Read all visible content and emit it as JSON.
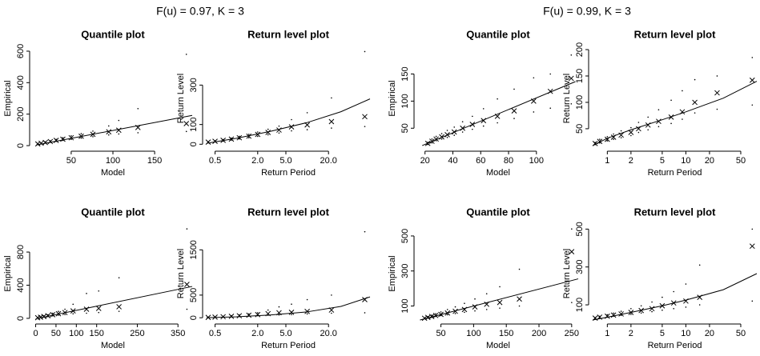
{
  "figure_titles": [
    "F(u) = 0.97, K = 3",
    "F(u) = 0.99, K = 3"
  ],
  "chart_data": [
    {
      "type": "scatter",
      "title": "Quantile plot",
      "xlabel": "Model",
      "ylabel": "Empirical",
      "xlog": false,
      "xlim": [
        5,
        195
      ],
      "ylim": [
        -10,
        610
      ],
      "xticks": [
        50,
        100,
        150
      ],
      "yticks": [
        0,
        200,
        400,
        600
      ],
      "series": [
        {
          "marker": "x",
          "x": [
            10,
            14,
            19,
            25,
            32,
            40,
            50,
            62,
            76,
            95,
            107,
            130,
            188
          ],
          "values": [
            11,
            15,
            20,
            26,
            33,
            41,
            50,
            60,
            72,
            88,
            98,
            115,
            140
          ]
        },
        {
          "marker": "dot",
          "x": [
            10,
            14,
            19,
            25,
            32,
            40,
            50,
            62,
            76,
            95,
            107,
            130,
            188
          ],
          "values": [
            13,
            18,
            24,
            31,
            40,
            50,
            62,
            76,
            92,
            125,
            160,
            235,
            580
          ]
        },
        {
          "marker": "dot",
          "x": [
            10,
            14,
            19,
            25,
            32,
            40,
            50,
            62,
            76,
            95,
            107,
            130,
            188
          ],
          "values": [
            9,
            12,
            16,
            21,
            27,
            33,
            40,
            48,
            57,
            68,
            74,
            82,
            90
          ]
        },
        {
          "marker": "line",
          "x": [
            8,
            195
          ],
          "values": [
            4,
            192
          ]
        }
      ]
    },
    {
      "type": "scatter",
      "title": "Return level plot",
      "xlabel": "Return Period",
      "ylabel": "Return Level",
      "xlog": true,
      "xlim": [
        0.38,
        77
      ],
      "ylim": [
        -15,
        480
      ],
      "xticks": [
        0.5,
        {
          "value": 2,
          "label": "2.0"
        },
        {
          "value": 5,
          "label": "5.0"
        },
        {
          "value": 20,
          "label": "20.0"
        }
      ],
      "yticks": [
        0,
        100,
        300
      ],
      "series": [
        {
          "marker": "x",
          "x": [
            0.4,
            0.5,
            0.65,
            0.85,
            1.1,
            1.5,
            2,
            2.8,
            4,
            6,
            10,
            22,
            65
          ],
          "values": [
            11,
            15,
            20,
            26,
            33,
            41,
            50,
            60,
            72,
            88,
            98,
            115,
            140
          ]
        },
        {
          "marker": "dot",
          "x": [
            0.4,
            0.5,
            0.65,
            0.85,
            1.1,
            1.5,
            2,
            2.8,
            4,
            6,
            10,
            22,
            65
          ],
          "values": [
            13,
            18,
            24,
            31,
            40,
            50,
            62,
            76,
            92,
            125,
            160,
            235,
            470
          ]
        },
        {
          "marker": "dot",
          "x": [
            0.4,
            0.5,
            0.65,
            0.85,
            1.1,
            1.5,
            2,
            2.8,
            4,
            6,
            10,
            22,
            65
          ],
          "values": [
            9,
            12,
            16,
            21,
            27,
            33,
            40,
            48,
            57,
            68,
            74,
            82,
            90
          ]
        },
        {
          "marker": "line",
          "x": [
            0.38,
            1,
            3,
            10,
            30,
            77
          ],
          "values": [
            5,
            30,
            65,
            110,
            165,
            230
          ]
        }
      ]
    },
    {
      "type": "scatter",
      "title": "Quantile plot",
      "xlabel": "Model",
      "ylabel": "Empirical",
      "xlog": false,
      "xlim": [
        15,
        130
      ],
      "ylim": [
        15,
        195
      ],
      "xticks": [
        20,
        40,
        60,
        80,
        100
      ],
      "yticks": [
        50,
        100,
        150
      ],
      "series": [
        {
          "marker": "x",
          "x": [
            22,
            25,
            28,
            32,
            36,
            41,
            47,
            54,
            62,
            72,
            84,
            98,
            110,
            125
          ],
          "values": [
            22,
            26,
            30,
            34,
            38,
            43,
            50,
            57,
            64,
            72,
            82,
            100,
            118,
            142
          ]
        },
        {
          "marker": "dot",
          "x": [
            22,
            25,
            28,
            32,
            36,
            41,
            47,
            54,
            62,
            72,
            84,
            98,
            110,
            125
          ],
          "values": [
            24,
            30,
            35,
            40,
            46,
            52,
            62,
            72,
            86,
            104,
            122,
            143,
            150,
            185
          ]
        },
        {
          "marker": "dot",
          "x": [
            22,
            25,
            28,
            32,
            36,
            41,
            47,
            54,
            62,
            72,
            84,
            98,
            110,
            125
          ],
          "values": [
            20,
            23,
            27,
            30,
            33,
            37,
            43,
            48,
            54,
            60,
            68,
            80,
            87,
            95
          ]
        },
        {
          "marker": "line",
          "x": [
            18,
            128
          ],
          "values": [
            18,
            136
          ]
        }
      ]
    },
    {
      "type": "scatter",
      "title": "Return level plot",
      "xlabel": "Return Period",
      "ylabel": "Return Level",
      "xlog": true,
      "xlim": [
        0.65,
        80
      ],
      "ylim": [
        15,
        200
      ],
      "xticks": [
        1,
        2,
        5,
        10,
        20,
        50
      ],
      "yticks": [
        50,
        100,
        150,
        200
      ],
      "series": [
        {
          "marker": "x",
          "x": [
            0.7,
            0.8,
            1,
            1.2,
            1.5,
            2,
            2.5,
            3.3,
            4.5,
            6.5,
            9,
            13,
            25,
            70
          ],
          "values": [
            22,
            26,
            30,
            34,
            38,
            43,
            50,
            57,
            64,
            72,
            82,
            100,
            118,
            142
          ]
        },
        {
          "marker": "dot",
          "x": [
            0.7,
            0.8,
            1,
            1.2,
            1.5,
            2,
            2.5,
            3.3,
            4.5,
            6.5,
            9,
            13,
            25,
            70
          ],
          "values": [
            24,
            30,
            35,
            40,
            46,
            52,
            62,
            72,
            86,
            104,
            122,
            143,
            150,
            185
          ]
        },
        {
          "marker": "dot",
          "x": [
            0.7,
            0.8,
            1,
            1.2,
            1.5,
            2,
            2.5,
            3.3,
            4.5,
            6.5,
            9,
            13,
            25,
            70
          ],
          "values": [
            20,
            23,
            27,
            30,
            33,
            37,
            43,
            48,
            54,
            60,
            68,
            80,
            87,
            95
          ]
        },
        {
          "marker": "line",
          "x": [
            0.65,
            1,
            2,
            5,
            10,
            30,
            80
          ],
          "values": [
            18,
            32,
            48,
            67,
            82,
            108,
            140
          ]
        }
      ]
    },
    {
      "type": "scatter",
      "title": "Quantile plot",
      "xlabel": "Model",
      "ylabel": "Empirical",
      "xlog": false,
      "xlim": [
        -5,
        385
      ],
      "ylim": [
        -20,
        1100
      ],
      "xticks": [
        0,
        50,
        100,
        150,
        250,
        350
      ],
      "yticks": [
        0,
        400,
        800
      ],
      "series": [
        {
          "marker": "x",
          "x": [
            5,
            12,
            20,
            30,
            42,
            56,
            72,
            92,
            125,
            155,
            205,
            372
          ],
          "values": [
            8,
            14,
            22,
            32,
            44,
            56,
            70,
            90,
            110,
            120,
            140,
            410
          ]
        },
        {
          "marker": "dot",
          "x": [
            5,
            12,
            20,
            30,
            42,
            56,
            72,
            92,
            125,
            155,
            205,
            372
          ],
          "values": [
            10,
            18,
            30,
            44,
            62,
            84,
            110,
            170,
            300,
            330,
            490,
            1080
          ]
        },
        {
          "marker": "dot",
          "x": [
            5,
            12,
            20,
            30,
            42,
            56,
            72,
            92,
            125,
            155,
            205,
            372
          ],
          "values": [
            6,
            10,
            16,
            22,
            30,
            38,
            46,
            55,
            62,
            70,
            85,
            110
          ]
        },
        {
          "marker": "line",
          "x": [
            0,
            385
          ],
          "values": [
            -5,
            385
          ]
        }
      ]
    },
    {
      "type": "scatter",
      "title": "Return level plot",
      "xlabel": "Return Period",
      "ylabel": "Return Level",
      "xlog": true,
      "xlim": [
        0.38,
        77
      ],
      "ylim": [
        -50,
        2000
      ],
      "xticks": [
        0.5,
        {
          "value": 2,
          "label": "2.0"
        },
        {
          "value": 5,
          "label": "5.0"
        },
        {
          "value": 20,
          "label": "20.0"
        }
      ],
      "yticks": [
        0,
        500,
        1500
      ],
      "series": [
        {
          "marker": "x",
          "x": [
            0.4,
            0.5,
            0.65,
            0.85,
            1.1,
            1.5,
            2,
            2.8,
            4,
            6,
            10,
            22,
            65
          ],
          "values": [
            8,
            14,
            22,
            32,
            44,
            56,
            70,
            90,
            110,
            120,
            140,
            170,
            400
          ]
        },
        {
          "marker": "dot",
          "x": [
            0.4,
            0.5,
            0.65,
            0.85,
            1.1,
            1.5,
            2,
            2.8,
            4,
            6,
            10,
            22,
            65
          ],
          "values": [
            10,
            18,
            30,
            44,
            62,
            84,
            110,
            170,
            240,
            300,
            400,
            500,
            1900
          ]
        },
        {
          "marker": "dot",
          "x": [
            0.4,
            0.5,
            0.65,
            0.85,
            1.1,
            1.5,
            2,
            2.8,
            4,
            6,
            10,
            22,
            65
          ],
          "values": [
            6,
            10,
            16,
            22,
            30,
            38,
            46,
            55,
            62,
            70,
            85,
            100,
            110
          ]
        },
        {
          "marker": "line",
          "x": [
            0.38,
            1,
            3,
            10,
            30,
            77
          ],
          "values": [
            0,
            20,
            60,
            130,
            250,
            460
          ]
        }
      ]
    },
    {
      "type": "scatter",
      "title": "Quantile plot",
      "xlabel": "Model",
      "ylabel": "Empirical",
      "xlog": false,
      "xlim": [
        15,
        260
      ],
      "ylim": [
        20,
        550
      ],
      "xticks": [
        50,
        100,
        150,
        200,
        250
      ],
      "yticks": [
        100,
        300,
        500
      ],
      "series": [
        {
          "marker": "x",
          "x": [
            25,
            30,
            36,
            42,
            50,
            60,
            72,
            86,
            102,
            120,
            140,
            170,
            250
          ],
          "values": [
            30,
            35,
            40,
            46,
            52,
            60,
            70,
            80,
            95,
            110,
            120,
            140,
            410
          ]
        },
        {
          "marker": "dot",
          "x": [
            25,
            30,
            36,
            42,
            50,
            60,
            72,
            86,
            102,
            120,
            140,
            170,
            250
          ],
          "values": [
            33,
            40,
            48,
            56,
            66,
            80,
            95,
            115,
            140,
            170,
            210,
            310,
            540
          ]
        },
        {
          "marker": "dot",
          "x": [
            25,
            30,
            36,
            42,
            50,
            60,
            72,
            86,
            102,
            120,
            140,
            170,
            250
          ],
          "values": [
            27,
            31,
            35,
            40,
            45,
            50,
            57,
            64,
            72,
            80,
            88,
            100,
            120
          ]
        },
        {
          "marker": "line",
          "x": [
            18,
            260
          ],
          "values": [
            20,
            255
          ]
        }
      ]
    },
    {
      "type": "scatter",
      "title": "Return level plot",
      "xlabel": "Return Period",
      "ylabel": "Return Level",
      "xlog": true,
      "xlim": [
        0.65,
        80
      ],
      "ylim": [
        20,
        510
      ],
      "xticks": [
        1,
        2,
        5,
        10,
        20,
        50
      ],
      "yticks": [
        100,
        300,
        500
      ],
      "series": [
        {
          "marker": "x",
          "x": [
            0.7,
            0.8,
            1,
            1.2,
            1.5,
            2,
            2.7,
            3.7,
            5,
            7,
            10,
            15,
            70
          ],
          "values": [
            30,
            35,
            40,
            46,
            52,
            60,
            70,
            80,
            95,
            110,
            120,
            140,
            410
          ]
        },
        {
          "marker": "dot",
          "x": [
            0.7,
            0.8,
            1,
            1.2,
            1.5,
            2,
            2.7,
            3.7,
            5,
            7,
            10,
            15,
            70
          ],
          "values": [
            33,
            40,
            48,
            56,
            66,
            80,
            95,
            115,
            140,
            170,
            210,
            310,
            500
          ]
        },
        {
          "marker": "dot",
          "x": [
            0.7,
            0.8,
            1,
            1.2,
            1.5,
            2,
            2.7,
            3.7,
            5,
            7,
            10,
            15,
            70
          ],
          "values": [
            27,
            31,
            35,
            40,
            45,
            50,
            57,
            64,
            72,
            80,
            88,
            100,
            120
          ]
        },
        {
          "marker": "line",
          "x": [
            0.65,
            1,
            2,
            5,
            10,
            30,
            80
          ],
          "values": [
            20,
            35,
            60,
            95,
            125,
            180,
            265
          ]
        }
      ]
    }
  ]
}
